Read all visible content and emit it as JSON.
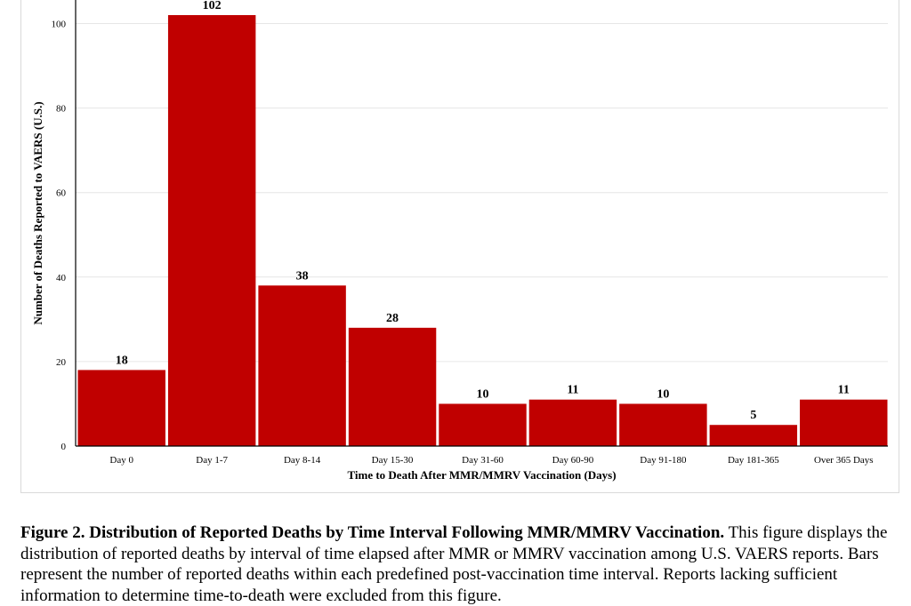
{
  "chart_data": {
    "type": "bar",
    "categories": [
      "Day 0",
      "Day 1-7",
      "Day 8-14",
      "Day 15-30",
      "Day 31-60",
      "Day 60-90",
      "Day 91-180",
      "Day 181-365",
      "Over 365 Days"
    ],
    "values": [
      18,
      102,
      38,
      28,
      10,
      11,
      10,
      5,
      11
    ],
    "xlabel": "Time to Death After MMR/MMRV Vaccination (Days)",
    "ylabel": "Number of Deaths Reported to VAERS (U.S.)",
    "ylim": [
      0,
      102
    ],
    "yticks": [
      0,
      20,
      40,
      60,
      80,
      100
    ],
    "grid": true,
    "bar_color": "#c00000"
  },
  "caption": {
    "title": "Figure 2. Distribution of Reported Deaths by Time Interval Following MMR/MMRV Vaccination.",
    "body": "This figure displays the distribution of reported deaths by interval of time elapsed after MMR or MMRV vaccination among U.S. VAERS reports. Bars represent the number of reported deaths within each predefined post-vaccination time interval. Reports lacking sufficient information to determine time-to-death were excluded from this figure."
  }
}
